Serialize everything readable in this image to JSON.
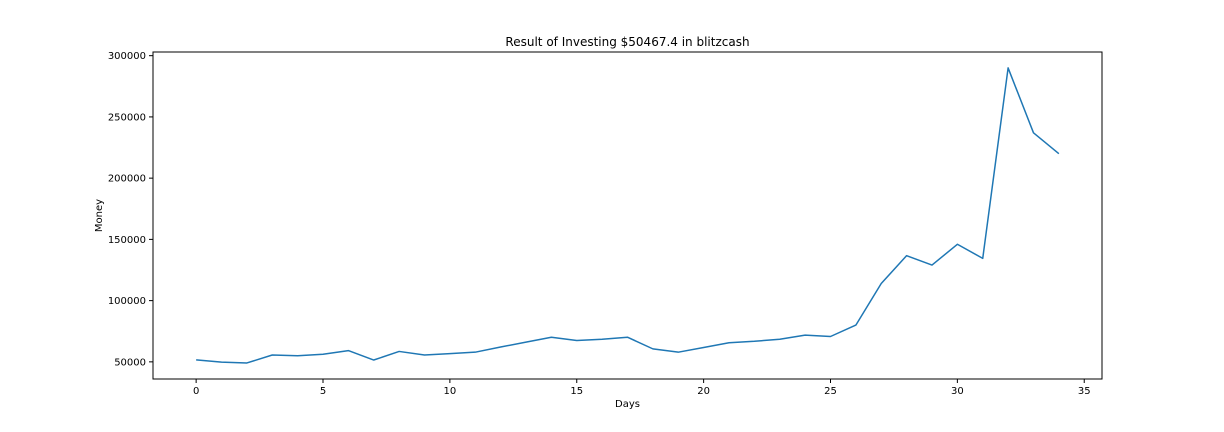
{
  "chart_data": {
    "type": "line",
    "title": "Result of Investing $50467.4 in blitzcash",
    "xlabel": "Days",
    "ylabel": "Money",
    "xlim": [
      -1.7,
      35.7
    ],
    "ylim": [
      36000,
      303000
    ],
    "xticks": [
      0,
      5,
      10,
      15,
      20,
      25,
      30,
      35
    ],
    "yticks": [
      50000,
      100000,
      150000,
      200000,
      250000,
      300000
    ],
    "grid": false,
    "legend": "none",
    "series": [
      {
        "color": "#1f77b4",
        "x": [
          0,
          1,
          2,
          3,
          4,
          5,
          6,
          7,
          8,
          9,
          10,
          11,
          12,
          13,
          14,
          15,
          16,
          17,
          18,
          19,
          20,
          21,
          22,
          23,
          24,
          25,
          26,
          27,
          28,
          29,
          30,
          31,
          32,
          33,
          34
        ],
        "y": [
          51600,
          49800,
          49100,
          55600,
          55000,
          56200,
          59200,
          51500,
          58500,
          55600,
          56700,
          57900,
          62100,
          66100,
          70100,
          67400,
          68500,
          70100,
          60600,
          57900,
          61700,
          65600,
          66800,
          68500,
          71800,
          70700,
          80000,
          114000,
          136700,
          129000,
          146000,
          134500,
          290000,
          237000,
          220000
        ]
      }
    ]
  }
}
